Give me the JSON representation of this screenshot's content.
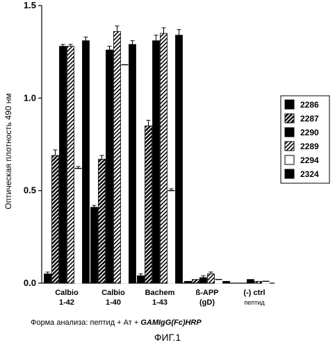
{
  "chart_data": {
    "type": "bar",
    "ylabel": "Оптическая плотность 490 нм",
    "ylim": [
      0,
      1.5
    ],
    "yticks": [
      "0.0",
      "0.5",
      "1.0",
      "1.5"
    ],
    "ytick_values": [
      0,
      0.5,
      1.0,
      1.5
    ],
    "categories": [
      {
        "lines": [
          "Calbio",
          "1-42"
        ]
      },
      {
        "lines": [
          "Calbio",
          "1-40"
        ]
      },
      {
        "lines": [
          "Bachem",
          "1-43"
        ]
      },
      {
        "lines": [
          "ß-APP",
          "(gD)"
        ]
      },
      {
        "lines": [
          "(-) ctrl",
          "пептид"
        ]
      }
    ],
    "series": [
      {
        "name": "2286",
        "pattern": "solid",
        "values": [
          0.05,
          0.41,
          0.04,
          0.01,
          0.0
        ]
      },
      {
        "name": "2287",
        "pattern": "hatch",
        "values": [
          0.69,
          0.67,
          0.85,
          0.02,
          0.0
        ]
      },
      {
        "name": "2290",
        "pattern": "solid",
        "values": [
          1.28,
          1.26,
          1.31,
          0.03,
          0.02
        ]
      },
      {
        "name": "2289",
        "pattern": "hatch-light",
        "values": [
          1.28,
          1.36,
          1.35,
          0.05,
          0.01
        ]
      },
      {
        "name": "2294",
        "pattern": "white",
        "values": [
          0.62,
          1.18,
          0.5,
          0.02,
          0.01
        ]
      },
      {
        "name": "2324",
        "pattern": "solid",
        "values": [
          1.31,
          1.29,
          1.34,
          0.01,
          0.0
        ]
      }
    ],
    "errors": [
      [
        0.01,
        0.01,
        0.01,
        0.0,
        0.0
      ],
      [
        0.03,
        0.02,
        0.03,
        0.0,
        0.0
      ],
      [
        0.01,
        0.02,
        0.03,
        0.01,
        0.0
      ],
      [
        0.01,
        0.03,
        0.03,
        0.01,
        0.0
      ],
      [
        0.01,
        0.0,
        0.01,
        0.0,
        0.0
      ],
      [
        0.02,
        0.02,
        0.03,
        0.0,
        0.0
      ]
    ],
    "legend": "right"
  },
  "caption": {
    "text": "Форма анализа: пептид + Ат + ",
    "bold": "GAMIgG(Fc)HRP"
  },
  "figure_label": "ФИГ.1"
}
